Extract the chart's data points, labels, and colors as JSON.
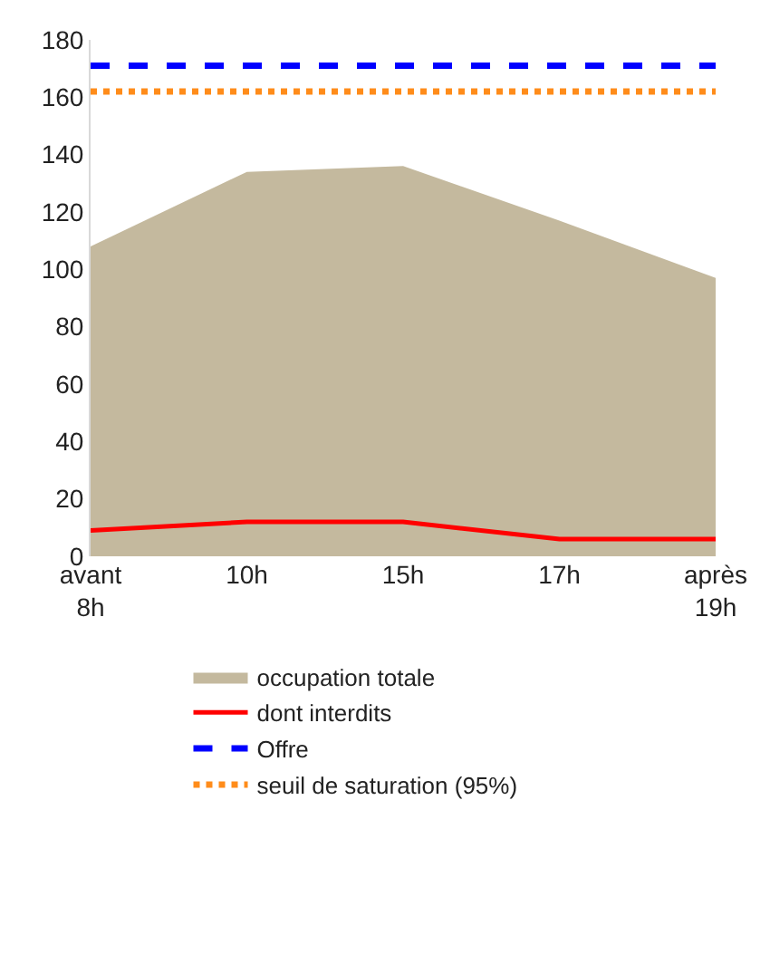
{
  "chart_data": {
    "type": "area",
    "categories": [
      "avant 8h",
      "10h",
      "15h",
      "17h",
      "après 19h"
    ],
    "series": [
      {
        "name": "occupation totale",
        "type": "area",
        "color": "#c4b99e",
        "values": [
          108,
          134,
          136,
          117,
          97
        ]
      },
      {
        "name": "dont interdits",
        "type": "line",
        "color": "#ff0000",
        "values": [
          9,
          12,
          12,
          6,
          6
        ]
      },
      {
        "name": "Offre",
        "type": "line",
        "color": "#0000ff",
        "line_style": "dashed",
        "values": [
          171,
          171,
          171,
          171,
          171
        ]
      },
      {
        "name": "seuil de saturation (95%)",
        "type": "line",
        "color": "#ff8c1a",
        "line_style": "dotted",
        "values": [
          162,
          162,
          162,
          162,
          162
        ]
      }
    ],
    "ylim": [
      0,
      180
    ],
    "yticks": [
      0,
      20,
      40,
      60,
      80,
      100,
      120,
      140,
      160,
      180
    ],
    "grid": false,
    "legend": "bottom"
  }
}
